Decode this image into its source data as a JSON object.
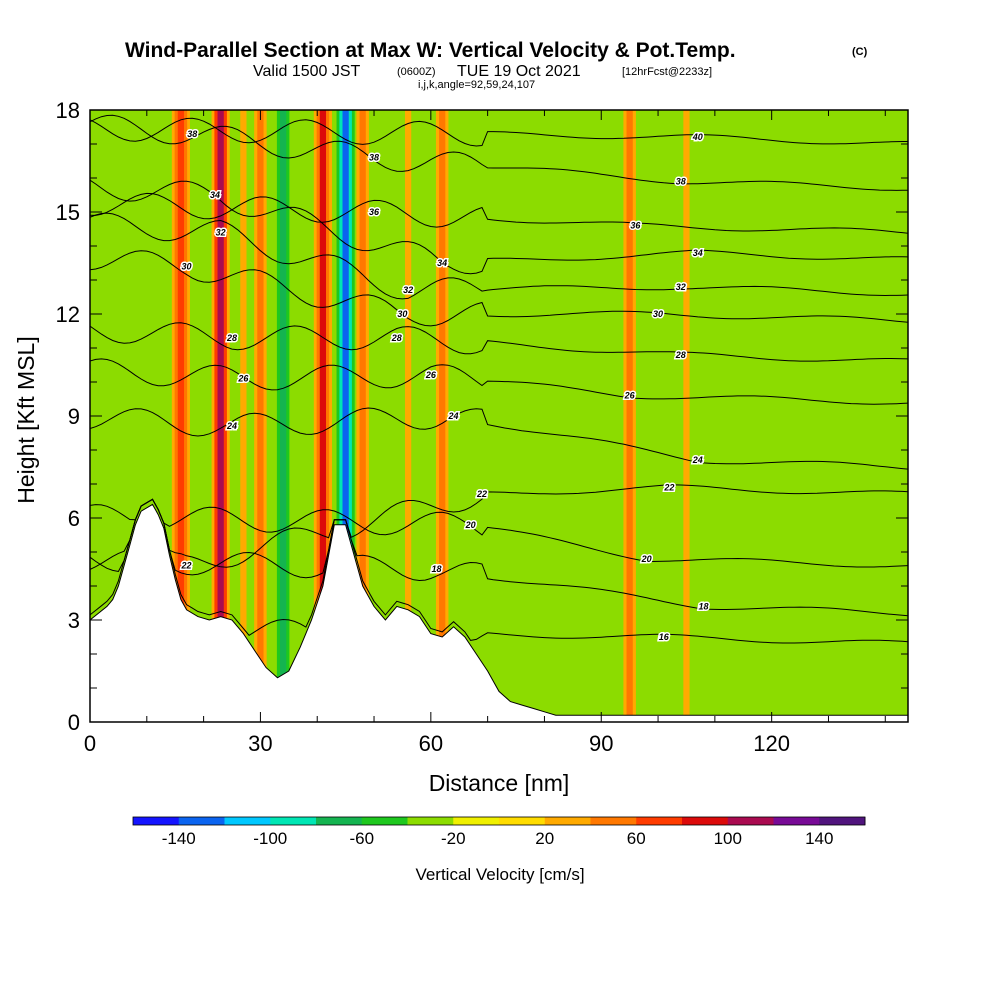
{
  "chart_data": {
    "type": "heatmap",
    "title": "Wind-Parallel Section at Max W: Vertical Velocity & Pot.Temp.",
    "copyright_mark": "(C)",
    "subtitle_main": "Valid 1500 JST",
    "subtitle_z": "(0600Z)",
    "subtitle_date": "TUE 19 Oct 2021",
    "subtitle_fcst": "[12hrFcst@2233z]",
    "subtitle_ijk": "i,j,k,angle=92,59,24,107",
    "xlabel": "Distance [nm]",
    "ylabel": "Height [Kft MSL]",
    "xlim": [
      0,
      144
    ],
    "ylim": [
      0,
      18
    ],
    "xticks": [
      0,
      30,
      60,
      90,
      120
    ],
    "yticks": [
      0,
      3,
      6,
      9,
      12,
      15,
      18
    ],
    "colorbar": {
      "title": "Vertical Velocity [cm/s]",
      "tick_labels": [
        "-140",
        "-100",
        "-60",
        "-20",
        "20",
        "60",
        "100",
        "140"
      ],
      "tick_values": [
        -140,
        -100,
        -60,
        -20,
        20,
        60,
        100,
        140
      ],
      "bins": [
        -160,
        -140,
        -120,
        -100,
        -80,
        -60,
        -40,
        -20,
        0,
        20,
        40,
        60,
        80,
        100,
        120,
        140,
        160
      ],
      "colors": [
        "#1414ff",
        "#0a64f0",
        "#00c8ff",
        "#00e6b4",
        "#14b450",
        "#1ec81e",
        "#8cdc00",
        "#f0f000",
        "#ffdc00",
        "#ffaa00",
        "#ff7800",
        "#ff3c00",
        "#dc0a0a",
        "#aa0a50",
        "#780a96",
        "#50147d"
      ]
    },
    "wave_bands": [
      {
        "x": 16,
        "value": 70
      },
      {
        "x": 23,
        "value": 100
      },
      {
        "x": 27,
        "value": 30
      },
      {
        "x": 30,
        "value": 50
      },
      {
        "x": 34,
        "value": -80
      },
      {
        "x": 37,
        "value": -40
      },
      {
        "x": 41,
        "value": 90
      },
      {
        "x": 45,
        "value": -140
      },
      {
        "x": 48,
        "value": 50
      },
      {
        "x": 52,
        "value": -30
      },
      {
        "x": 56,
        "value": 30
      },
      {
        "x": 62,
        "value": 40
      },
      {
        "x": 66,
        "value": -30
      },
      {
        "x": 72,
        "value": 10
      },
      {
        "x": 79,
        "value": -10
      },
      {
        "x": 95,
        "value": 40
      },
      {
        "x": 105,
        "value": 20
      }
    ],
    "theta_contours": [
      {
        "label": "16",
        "x": 101,
        "height": 2.5
      },
      {
        "label": "18",
        "x": 61,
        "height": 4.5
      },
      {
        "label": "18",
        "x": 108,
        "height": 3.4
      },
      {
        "label": "20",
        "x": 67,
        "height": 5.8
      },
      {
        "label": "20",
        "x": 98,
        "height": 4.8
      },
      {
        "label": "22",
        "x": 17,
        "height": 4.6
      },
      {
        "label": "22",
        "x": 69,
        "height": 6.7
      },
      {
        "label": "22",
        "x": 102,
        "height": 6.9
      },
      {
        "label": "24",
        "x": 25,
        "height": 8.7
      },
      {
        "label": "24",
        "x": 64,
        "height": 9.0
      },
      {
        "label": "24",
        "x": 107,
        "height": 7.7
      },
      {
        "label": "26",
        "x": 27,
        "height": 10.1
      },
      {
        "label": "26",
        "x": 60,
        "height": 10.2
      },
      {
        "label": "26",
        "x": 95,
        "height": 9.6
      },
      {
        "label": "28",
        "x": 25,
        "height": 11.3
      },
      {
        "label": "28",
        "x": 54,
        "height": 11.3
      },
      {
        "label": "28",
        "x": 104,
        "height": 10.8
      },
      {
        "label": "30",
        "x": 17,
        "height": 13.4
      },
      {
        "label": "30",
        "x": 55,
        "height": 12.0
      },
      {
        "label": "30",
        "x": 100,
        "height": 12.0
      },
      {
        "label": "32",
        "x": 23,
        "height": 14.4
      },
      {
        "label": "32",
        "x": 56,
        "height": 12.7
      },
      {
        "label": "32",
        "x": 104,
        "height": 12.8
      },
      {
        "label": "34",
        "x": 22,
        "height": 15.5
      },
      {
        "label": "34",
        "x": 62,
        "height": 13.5
      },
      {
        "label": "34",
        "x": 107,
        "height": 13.8
      },
      {
        "label": "36",
        "x": 50,
        "height": 15.0
      },
      {
        "label": "36",
        "x": 96,
        "height": 14.6
      },
      {
        "label": "38",
        "x": 18,
        "height": 17.3
      },
      {
        "label": "38",
        "x": 50,
        "height": 16.6
      },
      {
        "label": "38",
        "x": 104,
        "height": 15.9
      },
      {
        "label": "40",
        "x": 107,
        "height": 17.2
      }
    ],
    "terrain": [
      [
        0,
        3.0
      ],
      [
        3,
        3.4
      ],
      [
        4,
        3.6
      ],
      [
        5,
        4.0
      ],
      [
        6,
        4.6
      ],
      [
        7,
        5.2
      ],
      [
        8,
        5.8
      ],
      [
        9,
        6.2
      ],
      [
        11,
        6.4
      ],
      [
        12,
        6.1
      ],
      [
        13,
        5.7
      ],
      [
        14,
        4.9
      ],
      [
        15,
        4.2
      ],
      [
        16,
        3.6
      ],
      [
        17,
        3.3
      ],
      [
        19,
        3.1
      ],
      [
        21,
        3.0
      ],
      [
        23,
        3.1
      ],
      [
        25,
        3.0
      ],
      [
        27,
        2.6
      ],
      [
        29,
        2.1
      ],
      [
        31,
        1.6
      ],
      [
        33,
        1.3
      ],
      [
        35,
        1.5
      ],
      [
        37,
        2.2
      ],
      [
        39,
        3.0
      ],
      [
        41,
        4.0
      ],
      [
        42,
        4.9
      ],
      [
        43,
        5.8
      ],
      [
        45,
        5.8
      ],
      [
        46,
        5.2
      ],
      [
        47,
        4.6
      ],
      [
        48,
        4.0
      ],
      [
        50,
        3.4
      ],
      [
        52,
        3.0
      ],
      [
        54,
        3.4
      ],
      [
        56,
        3.3
      ],
      [
        58,
        3.1
      ],
      [
        60,
        2.6
      ],
      [
        62,
        2.5
      ],
      [
        64,
        2.8
      ],
      [
        66,
        2.5
      ],
      [
        68,
        2.0
      ],
      [
        70,
        1.5
      ],
      [
        72,
        0.9
      ],
      [
        74,
        0.6
      ],
      [
        76,
        0.5
      ],
      [
        78,
        0.4
      ],
      [
        80,
        0.3
      ],
      [
        82,
        0.2
      ],
      [
        144,
        0.2
      ]
    ]
  }
}
